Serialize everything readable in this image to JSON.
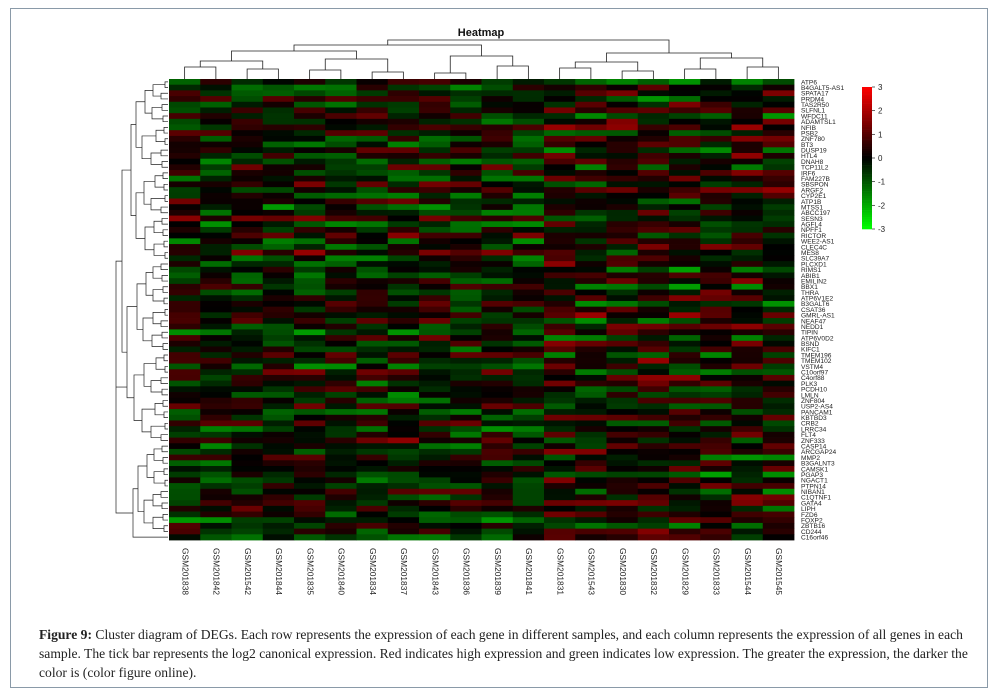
{
  "figure": {
    "label": "Figure 9:",
    "caption": "Cluster diagram of DEGs. Each row represents the expression of each gene in different samples, and each column represents the expression of all genes in each sample. The tick bar represents the log2 canonical expression. Red indicates high expression and green indicates low expression. The greater the expression, the darker the color is (color figure online)."
  },
  "chart_data": {
    "type": "heatmap",
    "title": "Heatmap",
    "columns": [
      "GSM201838",
      "GSM201842",
      "GSM201542",
      "GSM201844",
      "GSM201835",
      "GSM201840",
      "GSM201834",
      "GSM201837",
      "GSM201843",
      "GSM201836",
      "GSM201839",
      "GSM201841",
      "GSM201831",
      "GSM201543",
      "GSM201830",
      "GSM201832",
      "GSM201829",
      "GSM201833",
      "GSM201544",
      "GSM201545"
    ],
    "row_labels": [
      "ATP6",
      "B4GALT5-AS1",
      "SPATA17",
      "PRDM4",
      "TAS2R50",
      "SLFNL1",
      "WFDC11",
      "ADAMTSL1",
      "NFIB",
      "PSB2",
      "ZNF780",
      "BT3",
      "DUSP19",
      "HTL4",
      "DNAH8",
      "TCP11L2",
      "IRF6",
      "FAM227B",
      "SBSPON",
      "ARGF2",
      "CYP2E1",
      "ATP1B",
      "MTSS1",
      "ABCC197",
      "SESN3",
      "AGFL4",
      "NPFF1",
      "RICTOR",
      "WEE2-AS1",
      "CLEC4C",
      "MES8",
      "SLC39A7",
      "PLCXD1",
      "RIMS1",
      "ABIB1",
      "EMILIN2",
      "BBX1",
      "THRA",
      "ATP6V1E2",
      "B3GALT6",
      "CSAT36",
      "GMRL-AS1",
      "NEAF47",
      "NEDD1",
      "TIPIN",
      "ATP6V0D2",
      "BSND",
      "KIFC1",
      "TMEM196",
      "TMEM102",
      "VSTM4",
      "C10orf97",
      "C4orf88",
      "PLK3",
      "PCDH10",
      "LMLN",
      "ZNF804",
      "USP2-AS4",
      "PANCAM1",
      "KBTBD3",
      "CRB2",
      "LRRC34",
      "FLT4",
      "ZNF333",
      "CASP14",
      "ARCGAP24",
      "MMP2",
      "B3GALNT3",
      "CAMSK1",
      "PGAP3",
      "NGACT1",
      "PTPN14",
      "NIBAN1",
      "C1QTNF1",
      "GATA4",
      "LIPH",
      "FZD6",
      "FOXP2",
      "ZBTB16",
      "CD244",
      "C16orf46"
    ],
    "values": [],
    "color_scale": {
      "min": -3,
      "max": 3,
      "ticks": [
        3,
        2,
        1,
        0,
        -1,
        -2,
        -3
      ],
      "low_color": "#00ff00",
      "mid_color": "#000000",
      "high_color": "#ff0000"
    },
    "dendrograms": {
      "rows": true,
      "columns": true
    }
  },
  "colors": {
    "frame": "#8a9aa8",
    "text": "#222222"
  }
}
